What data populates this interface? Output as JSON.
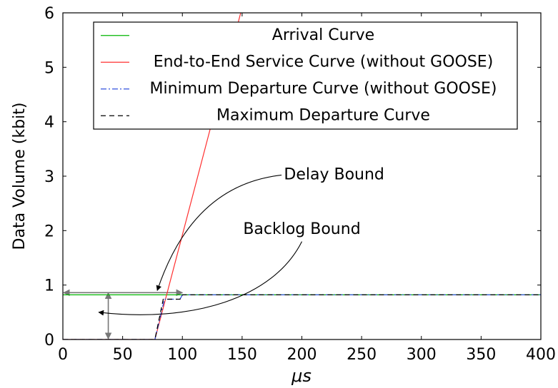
{
  "chart_data": {
    "type": "line",
    "xlabel": "μs",
    "ylabel": "Data Volume (kbit)",
    "xlim": [
      0,
      400
    ],
    "ylim": [
      0,
      6
    ],
    "xticks": [
      0,
      50,
      100,
      150,
      200,
      250,
      300,
      350,
      400
    ],
    "yticks": [
      0,
      1,
      2,
      3,
      4,
      5,
      6
    ],
    "grid": false,
    "legend_position": "top-right",
    "series": [
      {
        "name": "Arrival Curve",
        "color": "#00b400",
        "style": "solid",
        "points": [
          [
            0,
            0.82
          ],
          [
            400,
            0.82
          ]
        ]
      },
      {
        "name": "End-to-End Service Curve (without GOOSE)",
        "color": "#ff3030",
        "style": "solid",
        "points": [
          [
            0,
            0
          ],
          [
            77,
            0
          ],
          [
            150,
            6.1
          ]
        ]
      },
      {
        "name": "Minimum Departure Curve (without GOOSE)",
        "color": "#3050dd",
        "style": "dashdot",
        "points": [
          [
            0,
            0
          ],
          [
            77,
            0
          ],
          [
            85,
            0.74
          ],
          [
            98,
            0.74
          ],
          [
            100,
            0.82
          ],
          [
            400,
            0.82
          ]
        ]
      },
      {
        "name": "Maximum Departure Curve",
        "color": "#000000",
        "style": "dashed",
        "points": [
          [
            0,
            0
          ],
          [
            77,
            0
          ],
          [
            84,
            0.74
          ],
          [
            98,
            0.74
          ],
          [
            100,
            0.82
          ],
          [
            400,
            0.82
          ]
        ]
      }
    ],
    "annotations": [
      {
        "text": "Delay Bound",
        "text_at": [
          185,
          3.02
        ],
        "arrow_from": [
          183,
          3.02
        ],
        "arrow_to": [
          79,
          0.9
        ]
      },
      {
        "text": "Backlog Bound",
        "text_at": [
          200,
          2.02
        ],
        "arrow_from": [
          200,
          1.8
        ],
        "arrow_to": [
          30,
          0.5
        ]
      }
    ],
    "bound_markers": {
      "color": "#777777",
      "delay_interval": {
        "y": 0.86,
        "x_from": 0,
        "x_to": 100
      },
      "backlog_interval": {
        "x": 38,
        "y_from": 0,
        "y_to": 0.86
      }
    }
  }
}
